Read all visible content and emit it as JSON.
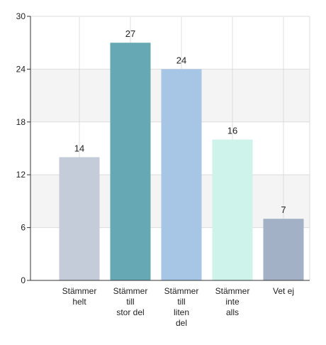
{
  "chart_data": {
    "type": "bar",
    "categories": [
      [
        "Stämmer",
        "helt"
      ],
      [
        "Stämmer",
        "till",
        "stor del"
      ],
      [
        "Stämmer",
        "till",
        "liten",
        "del"
      ],
      [
        "Stämmer",
        "inte",
        "alls"
      ],
      [
        "Vet ej"
      ]
    ],
    "values": [
      14,
      27,
      24,
      16,
      7
    ],
    "data_labels": [
      "14",
      "27",
      "24",
      "16",
      "7"
    ],
    "colors": [
      "#c4ccd9",
      "#66a8b4",
      "#a7c6e6",
      "#cdf3ea",
      "#a3b1c6"
    ],
    "ylim": [
      0,
      30
    ],
    "yticks": [
      0,
      6,
      12,
      18,
      24,
      30
    ],
    "ytick_labels": [
      "0",
      "6",
      "12",
      "18",
      "24",
      "30"
    ],
    "grid": true,
    "band_color": "#f4f4f4",
    "grid_color": "#dddddd"
  }
}
